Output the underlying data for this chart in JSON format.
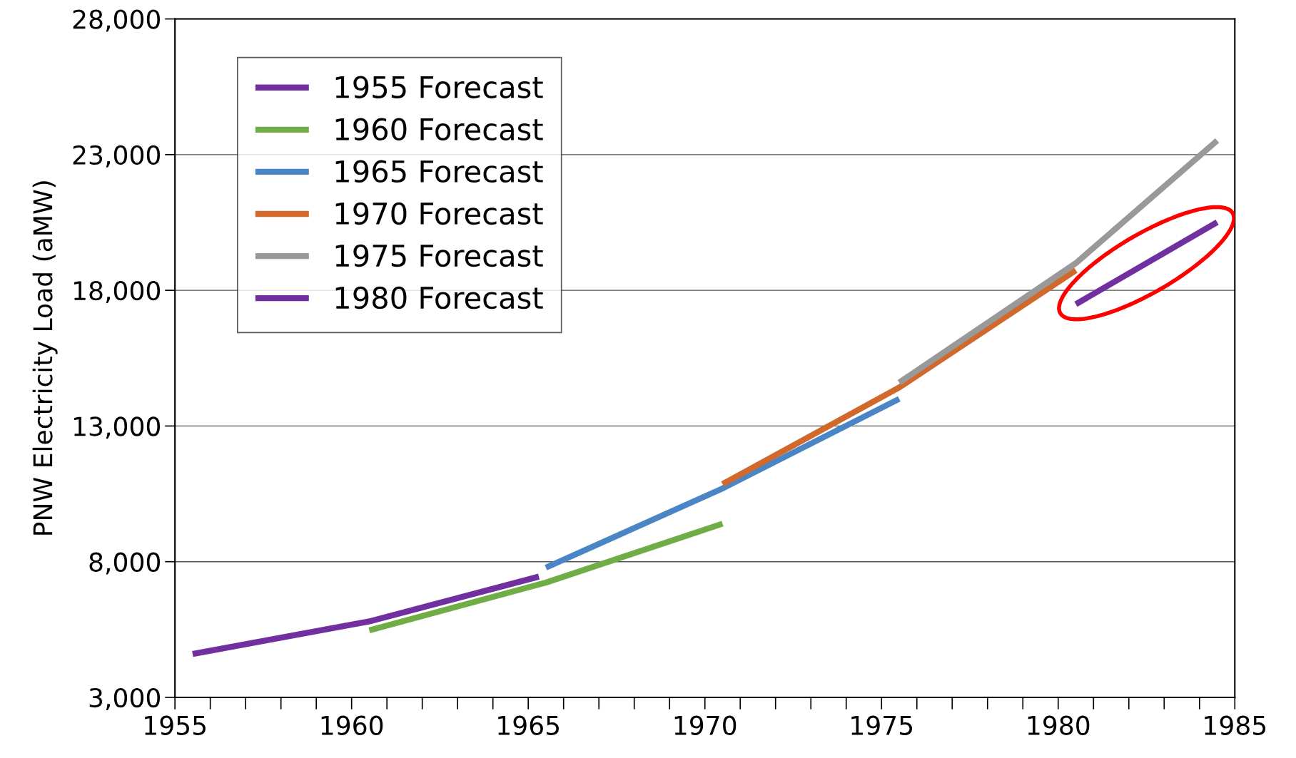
{
  "chart_data": {
    "type": "line",
    "ylabel": "PNW Electricity Load (aMW)",
    "xlim": [
      1955,
      1985
    ],
    "ylim": [
      3000,
      28000
    ],
    "xticks": [
      1955,
      1960,
      1965,
      1970,
      1975,
      1980,
      1985
    ],
    "yticks": [
      {
        "value": 3000,
        "label": "3,000"
      },
      {
        "value": 8000,
        "label": "8,000"
      },
      {
        "value": 13000,
        "label": "13,000"
      },
      {
        "value": 18000,
        "label": "18,000"
      },
      {
        "value": 23000,
        "label": "23,000"
      },
      {
        "value": 28000,
        "label": "28,000"
      }
    ],
    "grid": "y",
    "legend": "top left",
    "marker": "none",
    "line_style": "solid",
    "series": [
      {
        "name": "1955 Forecast",
        "color": "#7030a0",
        "x": [
          1955.5,
          1960.5,
          1965.3
        ],
        "values": [
          4600,
          5800,
          7450
        ]
      },
      {
        "name": "1960 Forecast",
        "color": "#70ad47",
        "x": [
          1960.5,
          1965.5,
          1970.5
        ],
        "values": [
          5470,
          7230,
          9400
        ]
      },
      {
        "name": "1965 Forecast",
        "color": "#4a86c5",
        "x": [
          1965.5,
          1970.5,
          1975.5
        ],
        "values": [
          7780,
          10700,
          14000
        ]
      },
      {
        "name": "1970 Forecast",
        "color": "#d2692c",
        "x": [
          1970.5,
          1975.5,
          1980.5
        ],
        "values": [
          10860,
          14420,
          18740
        ]
      },
      {
        "name": "1975 Forecast",
        "color": "#999999",
        "x": [
          1975.5,
          1980.5,
          1984.5
        ],
        "values": [
          14600,
          19000,
          23520
        ]
      },
      {
        "name": "1980 Forecast",
        "color": "#7030a0",
        "x": [
          1980.5,
          1984.5
        ],
        "values": [
          17490,
          20510
        ]
      }
    ]
  }
}
